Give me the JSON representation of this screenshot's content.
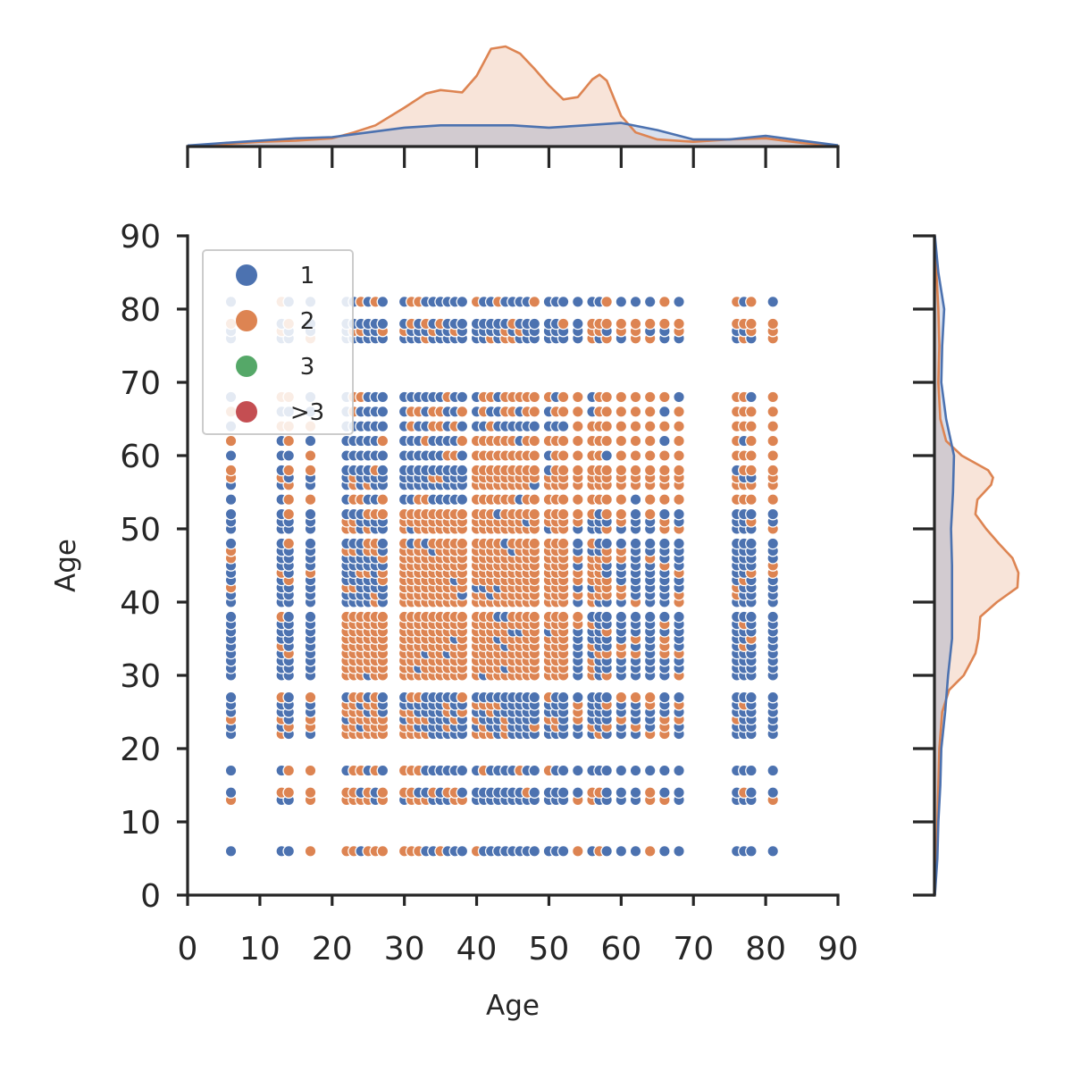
{
  "chart_data": {
    "type": "scatter",
    "subtype": "jointplot with marginal KDE plots",
    "title": "",
    "xlabel": "Age",
    "ylabel": "Age",
    "xlim": [
      0,
      90
    ],
    "ylim": [
      0,
      90
    ],
    "xticks": [
      0,
      10,
      20,
      30,
      40,
      50,
      60,
      70,
      80,
      90
    ],
    "yticks": [
      0,
      10,
      20,
      30,
      40,
      50,
      60,
      70,
      80,
      90
    ],
    "grid": false,
    "legend": {
      "placement": "upper-left",
      "entries": [
        {
          "label": "1",
          "color": "#4c72b0"
        },
        {
          "label": "2",
          "color": "#dd8452"
        },
        {
          "label": "3",
          "color": "#55a868"
        },
        {
          "label": ">3",
          "color": "#c44e52"
        }
      ]
    },
    "x_values": [
      6,
      13,
      14,
      17,
      22,
      23,
      24,
      25,
      26,
      27,
      30,
      31,
      32,
      33,
      34,
      35,
      36,
      37,
      38,
      40,
      41,
      42,
      43,
      44,
      45,
      46,
      47,
      48,
      50,
      51,
      52,
      54,
      56,
      57,
      58,
      60,
      62,
      64,
      66,
      68,
      76,
      77,
      78,
      81
    ],
    "y_values": [
      6,
      13,
      14,
      17,
      22,
      23,
      24,
      25,
      26,
      27,
      30,
      31,
      32,
      33,
      34,
      35,
      36,
      37,
      38,
      40,
      41,
      42,
      43,
      44,
      45,
      46,
      47,
      48,
      50,
      51,
      52,
      54,
      56,
      57,
      58,
      60,
      62,
      64,
      66,
      68,
      76,
      77,
      78,
      81
    ],
    "point_pattern": "grid of points over all listed x and y values; category 2 dominates the central block (x 22-52, y 30-52), category 1 dominates the outer rows and columns",
    "series": [
      {
        "name": "1",
        "color": "#4c72b0",
        "marker_size": 9
      },
      {
        "name": "2",
        "color": "#dd8452",
        "marker_size": 9
      },
      {
        "name": "3",
        "color": "#55a868",
        "marker_size": 9
      },
      {
        "name": ">3",
        "color": "#c44e52",
        "marker_size": 9
      }
    ],
    "marginal_x_kde": {
      "series": [
        {
          "name": "1",
          "color": "#4c72b0",
          "x": [
            0,
            5,
            10,
            15,
            20,
            25,
            30,
            35,
            40,
            45,
            50,
            55,
            60,
            65,
            70,
            75,
            80,
            85,
            90
          ],
          "density": [
            0.0008,
            0.003,
            0.005,
            0.007,
            0.008,
            0.012,
            0.016,
            0.018,
            0.018,
            0.018,
            0.016,
            0.018,
            0.02,
            0.014,
            0.006,
            0.006,
            0.009,
            0.005,
            0.001
          ]
        },
        {
          "name": "2",
          "color": "#dd8452",
          "x": [
            0,
            5,
            10,
            15,
            20,
            23,
            26,
            30,
            33,
            35,
            38,
            40,
            42,
            44,
            46,
            48,
            50,
            52,
            54,
            56,
            57,
            58,
            60,
            62,
            65,
            70,
            75,
            80,
            85,
            90
          ],
          "density": [
            0.0005,
            0.002,
            0.004,
            0.005,
            0.007,
            0.012,
            0.018,
            0.033,
            0.045,
            0.048,
            0.046,
            0.06,
            0.083,
            0.085,
            0.079,
            0.066,
            0.052,
            0.04,
            0.042,
            0.057,
            0.061,
            0.056,
            0.026,
            0.012,
            0.006,
            0.004,
            0.006,
            0.007,
            0.003,
            0.0005
          ]
        }
      ]
    },
    "marginal_y_kde": {
      "series": [
        {
          "name": "1",
          "color": "#4c72b0",
          "y": [
            0,
            5,
            10,
            15,
            20,
            25,
            30,
            35,
            40,
            45,
            50,
            55,
            60,
            65,
            70,
            75,
            80,
            85,
            90
          ],
          "density": [
            0.0005,
            0.003,
            0.004,
            0.006,
            0.007,
            0.011,
            0.014,
            0.018,
            0.018,
            0.018,
            0.017,
            0.019,
            0.02,
            0.012,
            0.007,
            0.008,
            0.01,
            0.004,
            0.0005
          ]
        },
        {
          "name": "2",
          "color": "#dd8452",
          "y": [
            0,
            5,
            10,
            15,
            20,
            25,
            28,
            30,
            33,
            35,
            38,
            40,
            42,
            44,
            46,
            48,
            50,
            52,
            54,
            56,
            57,
            58,
            60,
            62,
            65,
            70,
            75,
            80,
            85,
            90
          ],
          "density": [
            0.0005,
            0.002,
            0.003,
            0.004,
            0.005,
            0.008,
            0.015,
            0.03,
            0.042,
            0.045,
            0.047,
            0.064,
            0.085,
            0.086,
            0.08,
            0.066,
            0.053,
            0.042,
            0.044,
            0.058,
            0.06,
            0.055,
            0.028,
            0.012,
            0.006,
            0.004,
            0.005,
            0.004,
            0.002,
            0.0005
          ]
        }
      ]
    }
  }
}
